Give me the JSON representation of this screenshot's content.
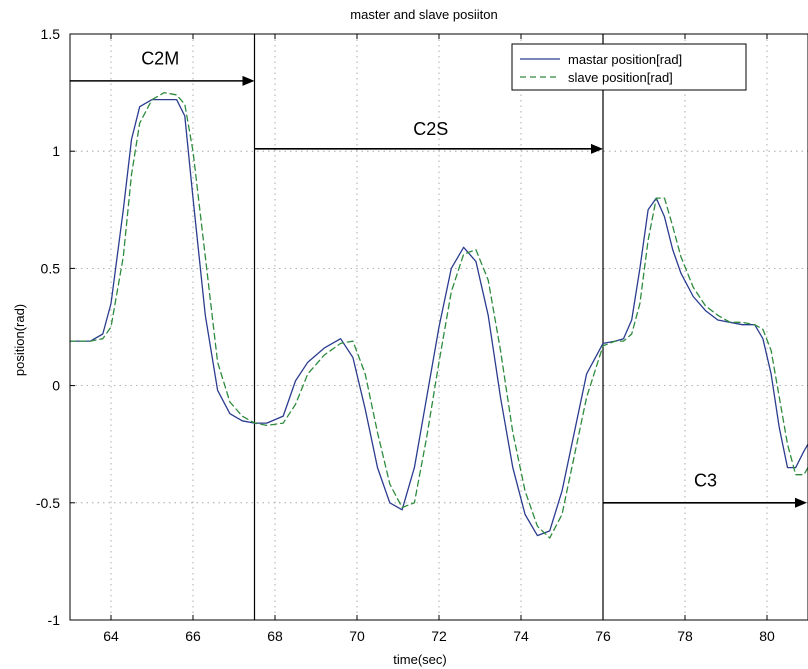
{
  "chart_data": {
    "type": "line",
    "title": "master and slave posiiton",
    "xlabel": "time(sec)",
    "ylabel": "position(rad)",
    "xlim": [
      63,
      81
    ],
    "ylim": [
      -1,
      1.5
    ],
    "xticks": [
      64,
      66,
      68,
      70,
      72,
      74,
      76,
      78,
      80
    ],
    "yticks": [
      -1,
      -0.5,
      0,
      0.5,
      1,
      1.5
    ],
    "ytick_labels": [
      "-1",
      "-0.5",
      "0",
      "0.5",
      "1",
      "1.5"
    ],
    "grid": true,
    "legend_position": "top-right",
    "series": [
      {
        "name": "mastar position[rad]",
        "color": "#2b3c8f",
        "dash": "solid",
        "x": [
          63.0,
          63.5,
          63.8,
          64.0,
          64.3,
          64.5,
          64.7,
          65.0,
          65.3,
          65.6,
          65.8,
          66.0,
          66.3,
          66.6,
          66.9,
          67.2,
          67.5,
          67.8,
          68.2,
          68.5,
          68.8,
          69.2,
          69.6,
          69.9,
          70.2,
          70.5,
          70.8,
          71.1,
          71.4,
          71.7,
          72.0,
          72.3,
          72.6,
          72.9,
          73.2,
          73.5,
          73.8,
          74.1,
          74.4,
          74.7,
          75.0,
          75.3,
          75.6,
          76.0,
          76.3,
          76.5,
          76.7,
          76.9,
          77.1,
          77.3,
          77.5,
          77.7,
          77.9,
          78.2,
          78.5,
          78.8,
          79.1,
          79.4,
          79.7,
          79.9,
          80.1,
          80.3,
          80.5,
          80.7,
          80.9,
          81.0
        ],
        "y": [
          0.19,
          0.19,
          0.22,
          0.35,
          0.75,
          1.05,
          1.19,
          1.22,
          1.22,
          1.22,
          1.15,
          0.8,
          0.3,
          -0.02,
          -0.12,
          -0.15,
          -0.16,
          -0.16,
          -0.13,
          0.02,
          0.1,
          0.16,
          0.2,
          0.12,
          -0.1,
          -0.35,
          -0.5,
          -0.53,
          -0.35,
          -0.05,
          0.25,
          0.5,
          0.59,
          0.53,
          0.3,
          -0.05,
          -0.35,
          -0.55,
          -0.64,
          -0.62,
          -0.45,
          -0.2,
          0.05,
          0.18,
          0.19,
          0.2,
          0.28,
          0.5,
          0.75,
          0.8,
          0.72,
          0.58,
          0.48,
          0.38,
          0.32,
          0.28,
          0.27,
          0.26,
          0.26,
          0.2,
          0.05,
          -0.18,
          -0.35,
          -0.35,
          -0.28,
          -0.25
        ]
      },
      {
        "name": "slave position[rad]",
        "color": "#2e8b3e",
        "dash": "dashed",
        "x": [
          63.0,
          63.5,
          63.8,
          64.0,
          64.3,
          64.5,
          64.7,
          65.0,
          65.3,
          65.6,
          65.8,
          66.0,
          66.3,
          66.6,
          66.9,
          67.2,
          67.5,
          67.8,
          68.2,
          68.5,
          68.8,
          69.2,
          69.6,
          69.9,
          70.2,
          70.5,
          70.8,
          71.1,
          71.4,
          71.7,
          72.0,
          72.3,
          72.6,
          72.9,
          73.2,
          73.5,
          73.8,
          74.1,
          74.4,
          74.7,
          75.0,
          75.3,
          75.6,
          76.0,
          76.3,
          76.5,
          76.7,
          76.9,
          77.1,
          77.3,
          77.5,
          77.7,
          77.9,
          78.2,
          78.5,
          78.8,
          79.1,
          79.4,
          79.7,
          79.9,
          80.1,
          80.3,
          80.5,
          80.7,
          80.9,
          81.0
        ],
        "y": [
          0.19,
          0.19,
          0.2,
          0.25,
          0.55,
          0.9,
          1.12,
          1.22,
          1.25,
          1.24,
          1.2,
          1.0,
          0.55,
          0.1,
          -0.07,
          -0.13,
          -0.16,
          -0.17,
          -0.16,
          -0.08,
          0.05,
          0.13,
          0.18,
          0.19,
          0.05,
          -0.2,
          -0.42,
          -0.52,
          -0.5,
          -0.22,
          0.1,
          0.4,
          0.56,
          0.58,
          0.45,
          0.15,
          -0.2,
          -0.45,
          -0.6,
          -0.65,
          -0.55,
          -0.3,
          -0.05,
          0.17,
          0.19,
          0.19,
          0.22,
          0.35,
          0.62,
          0.8,
          0.8,
          0.68,
          0.55,
          0.42,
          0.34,
          0.3,
          0.27,
          0.27,
          0.26,
          0.24,
          0.15,
          -0.05,
          -0.25,
          -0.38,
          -0.38,
          -0.35
        ]
      }
    ],
    "vlines": [
      {
        "x": 67.5,
        "style": "solid"
      },
      {
        "x": 76.0,
        "style": "solid"
      }
    ],
    "annotations": [
      {
        "text": "C2M",
        "label_x": 65.2,
        "label_y": 1.37,
        "arrow_from": [
          63.0,
          1.3
        ],
        "arrow_to": [
          67.5,
          1.3
        ]
      },
      {
        "text": "C2S",
        "label_x": 71.8,
        "label_y": 1.07,
        "arrow_from": [
          67.5,
          1.01
        ],
        "arrow_to": [
          76.0,
          1.01
        ]
      },
      {
        "text": "C3",
        "label_x": 78.5,
        "label_y": -0.43,
        "arrow_from": [
          76.0,
          -0.5
        ],
        "arrow_to": [
          81.0,
          -0.5
        ]
      }
    ]
  }
}
